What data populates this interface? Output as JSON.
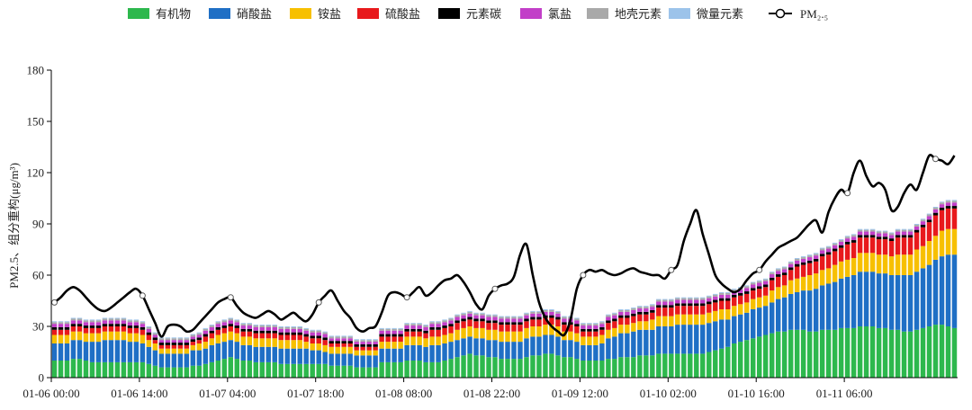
{
  "chart_data": {
    "type": "bar",
    "stacked": true,
    "overlay_line": "PM₂.₅",
    "title": "",
    "xlabel": "",
    "ylabel": "PM2.5、组分重构(μg/m³)",
    "ylim": [
      0,
      180
    ],
    "yticks": [
      0,
      30,
      60,
      90,
      120,
      150,
      180
    ],
    "grid": false,
    "legend_position": "top",
    "x_tick_labels": [
      "01-06 00:00",
      "01-06 14:00",
      "01-07 04:00",
      "01-07 18:00",
      "01-08 08:00",
      "01-08 22:00",
      "01-09 12:00",
      "01-10 02:00",
      "01-10 16:00",
      "01-11 06:00"
    ],
    "x_tick_every": 14,
    "n_hours": 144,
    "series": [
      {
        "name": "有机物",
        "color": "#2db84d",
        "values": [
          10,
          10,
          10,
          11,
          11,
          10,
          9,
          9,
          9,
          9,
          9,
          9,
          9,
          9,
          9,
          8,
          7,
          6,
          6,
          6,
          6,
          6,
          7,
          7,
          8,
          9,
          10,
          11,
          12,
          11,
          10,
          10,
          9,
          9,
          9,
          9,
          8,
          8,
          8,
          8,
          8,
          8,
          8,
          8,
          7,
          7,
          7,
          7,
          6,
          6,
          6,
          6,
          9,
          9,
          9,
          9,
          10,
          10,
          10,
          9,
          9,
          9,
          10,
          11,
          12,
          13,
          14,
          13,
          13,
          12,
          12,
          11,
          11,
          11,
          11,
          12,
          13,
          13,
          14,
          14,
          13,
          12,
          12,
          11,
          10,
          10,
          10,
          10,
          11,
          11,
          12,
          12,
          12,
          13,
          13,
          13,
          14,
          14,
          14,
          14,
          14,
          14,
          14,
          14,
          15,
          16,
          17,
          18,
          20,
          21,
          22,
          23,
          24,
          25,
          26,
          27,
          27,
          28,
          28,
          28,
          27,
          27,
          28,
          28,
          28,
          29,
          29,
          29,
          30,
          30,
          30,
          29,
          29,
          28,
          28,
          27,
          27,
          28,
          29,
          30,
          31,
          31,
          30,
          29
        ]
      },
      {
        "name": "硝酸盐",
        "color": "#1f6fc5",
        "values": [
          10,
          10,
          10,
          11,
          11,
          11,
          12,
          12,
          13,
          13,
          13,
          13,
          12,
          12,
          11,
          10,
          9,
          8,
          8,
          8,
          8,
          8,
          9,
          9,
          9,
          10,
          10,
          10,
          10,
          10,
          9,
          9,
          9,
          9,
          9,
          9,
          9,
          9,
          9,
          9,
          9,
          8,
          8,
          7,
          7,
          7,
          7,
          7,
          7,
          7,
          7,
          7,
          8,
          8,
          8,
          8,
          9,
          9,
          9,
          9,
          10,
          10,
          10,
          10,
          10,
          10,
          10,
          10,
          10,
          10,
          10,
          10,
          10,
          10,
          10,
          11,
          11,
          11,
          11,
          11,
          11,
          10,
          10,
          10,
          9,
          9,
          9,
          10,
          12,
          13,
          14,
          14,
          15,
          15,
          15,
          15,
          16,
          16,
          16,
          17,
          17,
          17,
          17,
          17,
          17,
          17,
          17,
          16,
          16,
          16,
          16,
          17,
          17,
          17,
          18,
          19,
          20,
          21,
          22,
          23,
          24,
          25,
          26,
          27,
          28,
          29,
          30,
          31,
          32,
          32,
          32,
          32,
          32,
          32,
          32,
          33,
          33,
          34,
          35,
          36,
          38,
          40,
          42,
          43
        ]
      },
      {
        "name": "铵盐",
        "color": "#f7c000",
        "values": [
          5,
          5,
          5,
          5,
          5,
          5,
          5,
          5,
          5,
          5,
          5,
          5,
          5,
          5,
          5,
          4,
          4,
          3,
          3,
          3,
          3,
          3,
          3,
          4,
          4,
          4,
          5,
          5,
          5,
          5,
          5,
          5,
          5,
          5,
          5,
          5,
          5,
          5,
          5,
          5,
          4,
          4,
          4,
          4,
          4,
          4,
          4,
          4,
          3,
          3,
          3,
          3,
          4,
          4,
          4,
          4,
          5,
          5,
          5,
          5,
          5,
          5,
          5,
          5,
          6,
          6,
          6,
          6,
          6,
          6,
          6,
          6,
          6,
          6,
          6,
          6,
          6,
          6,
          6,
          6,
          6,
          5,
          5,
          5,
          5,
          5,
          5,
          5,
          5,
          5,
          5,
          5,
          5,
          5,
          5,
          6,
          6,
          6,
          6,
          6,
          6,
          6,
          6,
          6,
          6,
          6,
          6,
          6,
          6,
          6,
          6,
          6,
          6,
          6,
          7,
          7,
          7,
          8,
          8,
          8,
          9,
          9,
          9,
          9,
          10,
          10,
          10,
          10,
          11,
          11,
          11,
          11,
          11,
          11,
          12,
          12,
          12,
          13,
          13,
          14,
          14,
          15,
          15,
          15
        ]
      },
      {
        "name": "硫酸盐",
        "color": "#e8191c",
        "values": [
          3,
          3,
          3,
          3,
          3,
          3,
          3,
          3,
          3,
          3,
          3,
          3,
          3,
          3,
          3,
          3,
          2,
          2,
          2,
          2,
          2,
          2,
          2,
          2,
          3,
          3,
          3,
          3,
          3,
          3,
          3,
          3,
          3,
          3,
          3,
          3,
          3,
          3,
          3,
          3,
          3,
          3,
          3,
          3,
          2,
          2,
          2,
          2,
          2,
          2,
          2,
          2,
          3,
          3,
          3,
          3,
          3,
          3,
          3,
          3,
          4,
          4,
          4,
          4,
          4,
          4,
          4,
          4,
          4,
          4,
          4,
          4,
          4,
          4,
          4,
          4,
          4,
          4,
          4,
          4,
          4,
          4,
          4,
          4,
          3,
          3,
          3,
          3,
          4,
          4,
          4,
          4,
          4,
          4,
          4,
          4,
          5,
          5,
          5,
          5,
          5,
          5,
          5,
          5,
          5,
          5,
          5,
          5,
          5,
          5,
          5,
          5,
          5,
          5,
          6,
          6,
          6,
          6,
          7,
          7,
          7,
          7,
          8,
          8,
          8,
          8,
          9,
          9,
          9,
          9,
          9,
          9,
          9,
          9,
          10,
          10,
          10,
          10,
          11,
          11,
          12,
          12,
          12,
          12
        ]
      },
      {
        "name": "元素碳",
        "color": "#000000",
        "values": [
          1.5,
          1.5,
          1.5,
          1.5,
          1.5,
          1.5,
          1.5,
          1.5,
          1.5,
          1.5,
          1.5,
          1.5,
          1.5,
          1.5,
          1.5,
          1.5,
          1.5,
          1.5,
          1.5,
          1.5,
          1.5,
          1.5,
          1.5,
          1.5,
          1.5,
          1.5,
          1.5,
          1.5,
          1.5,
          1.5,
          1.5,
          1.5,
          1.5,
          1.5,
          1.5,
          1.5,
          1.5,
          1.5,
          1.5,
          1.5,
          1.5,
          1.5,
          1.5,
          1.5,
          1.5,
          1.5,
          1.5,
          1.5,
          1.5,
          1.5,
          1.5,
          1.5,
          1.5,
          1.5,
          1.5,
          1.5,
          1.5,
          1.5,
          1.5,
          1.5,
          1.5,
          1.5,
          1.5,
          1.5,
          1.5,
          1.5,
          1.5,
          1.5,
          1.5,
          1.5,
          1.5,
          1.5,
          1.5,
          1.5,
          1.5,
          1.5,
          1.5,
          1.5,
          1.5,
          1.5,
          1.5,
          1.5,
          1.5,
          1.5,
          1.5,
          1.5,
          1.5,
          1.5,
          1.5,
          1.5,
          1.5,
          1.5,
          1.5,
          1.5,
          1.5,
          1.5,
          1.5,
          1.5,
          1.5,
          1.5,
          1.5,
          1.5,
          1.5,
          1.5,
          1.5,
          1.5,
          1.5,
          1.5,
          1.5,
          1.5,
          1.5,
          1.5,
          1.5,
          1.5,
          1.5,
          1.5,
          1.5,
          1.5,
          1.5,
          1.5,
          1.5,
          1.5,
          1.5,
          1.5,
          1.5,
          1.5,
          1.5,
          1.5,
          1.5,
          1.5,
          1.5,
          1.5,
          1.5,
          1.5,
          1.5,
          1.5,
          1.5,
          1.5,
          1.5,
          1.5,
          1.5,
          1.5,
          1.5,
          1.5,
          1.5,
          1.5
        ]
      },
      {
        "name": "氯盐",
        "color": "#c23fc8",
        "values": [
          2,
          2,
          2,
          2,
          2,
          2,
          2,
          2,
          2,
          2,
          2,
          2,
          2,
          2,
          2,
          2,
          1.5,
          1.5,
          1.5,
          1.5,
          1.5,
          1.5,
          1.5,
          1.5,
          2,
          2,
          2,
          2,
          2,
          2,
          2,
          2,
          2,
          2,
          2,
          2,
          2,
          2,
          2,
          2,
          2,
          2,
          2,
          2,
          1.5,
          1.5,
          1.5,
          1.5,
          1.5,
          1.5,
          1.5,
          1.5,
          2,
          2,
          2,
          2,
          2,
          2,
          2,
          2,
          2,
          2,
          2,
          2,
          2,
          2,
          2,
          2,
          2,
          2,
          2,
          2,
          2,
          2,
          2,
          2,
          2,
          2,
          2,
          2,
          2,
          2,
          2,
          2,
          2,
          2,
          2,
          2,
          2,
          2,
          2,
          2,
          2,
          2,
          2,
          2,
          2,
          2,
          2,
          2,
          2,
          2,
          2,
          2,
          2,
          2,
          2,
          2,
          2,
          2,
          2,
          2,
          2,
          2,
          2,
          2,
          2,
          2,
          2,
          2,
          2,
          2,
          2,
          2,
          2,
          2,
          2,
          2,
          2,
          2,
          2,
          2,
          2,
          2,
          2,
          2,
          2,
          2,
          2,
          2,
          2,
          2,
          2,
          2,
          2,
          2,
          2,
          2
        ]
      },
      {
        "name": "地壳元素",
        "color": "#a9a9a9",
        "values": [
          1,
          1,
          1,
          1,
          1,
          1,
          1,
          1,
          1,
          1,
          1,
          1,
          1,
          1,
          1,
          1,
          1,
          1,
          1,
          1,
          1,
          1,
          1,
          1,
          1,
          1,
          1,
          1,
          1,
          1,
          1,
          1,
          1,
          1,
          1,
          1,
          1,
          1,
          1,
          1,
          1,
          1,
          1,
          1,
          1,
          1,
          1,
          1,
          1,
          1,
          1,
          1,
          1,
          1,
          1,
          1,
          1,
          1,
          1,
          1,
          1,
          1,
          1,
          1,
          1,
          1,
          1,
          1,
          1,
          1,
          1,
          1,
          1,
          1,
          1,
          1,
          1,
          1,
          1,
          1,
          1,
          1,
          1,
          1,
          1,
          1,
          1,
          1,
          1,
          1,
          1,
          1,
          1,
          1,
          1,
          1,
          1,
          1,
          1,
          1,
          1,
          1,
          1,
          1,
          1,
          1,
          1,
          1,
          1,
          1,
          1,
          1,
          1,
          1,
          1,
          1,
          1,
          1,
          1,
          1,
          1,
          1,
          1,
          1,
          1,
          1,
          1,
          1,
          1,
          1,
          1,
          1,
          1,
          1,
          1,
          1,
          1,
          1,
          1,
          1,
          1,
          1,
          1,
          1
        ]
      },
      {
        "name": "微量元素",
        "color": "#9cc3ea",
        "values": [
          0.5,
          0.5,
          0.5,
          0.5,
          0.5,
          0.5,
          0.5,
          0.5,
          0.5,
          0.5,
          0.5,
          0.5,
          0.5,
          0.5,
          0.5,
          0.5,
          0.5,
          0.5,
          0.5,
          0.5,
          0.5,
          0.5,
          0.5,
          0.5,
          0.5,
          0.5,
          0.5,
          0.5,
          0.5,
          0.5,
          0.5,
          0.5,
          0.5,
          0.5,
          0.5,
          0.5,
          0.5,
          0.5,
          0.5,
          0.5,
          0.5,
          0.5,
          0.5,
          0.5,
          0.5,
          0.5,
          0.5,
          0.5,
          0.5,
          0.5,
          0.5,
          0.5,
          0.5,
          0.5,
          0.5,
          0.5,
          0.5,
          0.5,
          0.5,
          0.5,
          0.5,
          0.5,
          0.5,
          0.5,
          0.5,
          0.5,
          0.5,
          0.5,
          0.5,
          0.5,
          0.5,
          0.5,
          0.5,
          0.5,
          0.5,
          0.5,
          0.5,
          0.5,
          0.5,
          0.5,
          0.5,
          0.5,
          0.5,
          0.5,
          0.5,
          0.5,
          0.5,
          0.5,
          0.5,
          0.5,
          0.5,
          0.5,
          0.5,
          0.5,
          0.5,
          0.5,
          0.5,
          0.5,
          0.5,
          0.5,
          0.5,
          0.5,
          0.5,
          0.5,
          0.5,
          0.5,
          0.5,
          0.5,
          0.5,
          0.5,
          0.5,
          0.5,
          0.5,
          0.5,
          0.5,
          0.5,
          0.5,
          0.5,
          0.5,
          0.5,
          0.5,
          0.5,
          0.5,
          0.5,
          0.5,
          0.5,
          0.5,
          0.5,
          0.5,
          0.5,
          0.5,
          0.5,
          0.5,
          0.5,
          0.5,
          0.5,
          0.5,
          0.5,
          0.5,
          0.5,
          0.5,
          0.5,
          0.5,
          0.5,
          0.5,
          0.5
        ]
      }
    ],
    "pm25": {
      "name": "PM₂.₅",
      "color": "#000000",
      "values": [
        44,
        47,
        51,
        53,
        51,
        47,
        43,
        40,
        39,
        41,
        44,
        47,
        50,
        52,
        48,
        40,
        32,
        24,
        30,
        31,
        30,
        27,
        28,
        32,
        36,
        40,
        44,
        46,
        47,
        42,
        38,
        36,
        35,
        37,
        39,
        37,
        34,
        36,
        38,
        35,
        33,
        37,
        44,
        48,
        51,
        45,
        39,
        35,
        29,
        27,
        29,
        30,
        38,
        48,
        50,
        49,
        47,
        50,
        53,
        48,
        50,
        54,
        57,
        58,
        60,
        56,
        50,
        43,
        40,
        48,
        52,
        54,
        55,
        59,
        72,
        78,
        60,
        44,
        35,
        30,
        27,
        25,
        34,
        52,
        60,
        63,
        62,
        63,
        61,
        60,
        61,
        63,
        64,
        62,
        61,
        60,
        60,
        58,
        63,
        66,
        80,
        90,
        98,
        84,
        72,
        60,
        55,
        52,
        50,
        52,
        57,
        61,
        63,
        68,
        72,
        76,
        78,
        80,
        82,
        86,
        90,
        92,
        85,
        97,
        105,
        110,
        108,
        120,
        127,
        118,
        112,
        114,
        110,
        98,
        100,
        108,
        113,
        110,
        120,
        130,
        128,
        127,
        125,
        130
      ],
      "markers_every": 14
    }
  }
}
